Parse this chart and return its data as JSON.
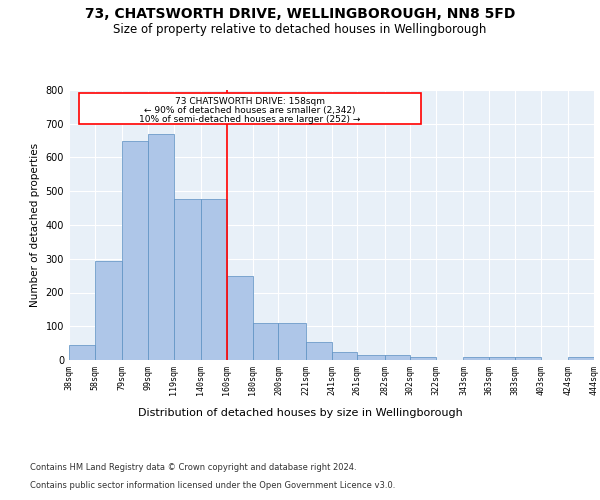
{
  "title1": "73, CHATSWORTH DRIVE, WELLINGBOROUGH, NN8 5FD",
  "title2": "Size of property relative to detached houses in Wellingborough",
  "xlabel": "Distribution of detached houses by size in Wellingborough",
  "ylabel": "Number of detached properties",
  "footer1": "Contains HM Land Registry data © Crown copyright and database right 2024.",
  "footer2": "Contains public sector information licensed under the Open Government Licence v3.0.",
  "annotation_line1": "73 CHATSWORTH DRIVE: 158sqm",
  "annotation_line2": "← 90% of detached houses are smaller (2,342)",
  "annotation_line3": "10% of semi-detached houses are larger (252) →",
  "bar_left_edges": [
    38,
    58,
    79,
    99,
    119,
    140,
    160,
    180,
    200,
    221,
    241,
    261,
    282,
    302,
    322,
    343,
    363,
    383,
    403,
    424
  ],
  "bar_heights": [
    45,
    293,
    650,
    670,
    478,
    478,
    250,
    110,
    110,
    52,
    25,
    14,
    14,
    8,
    0,
    8,
    8,
    8,
    0,
    8
  ],
  "bar_widths": [
    20,
    21,
    20,
    20,
    21,
    20,
    20,
    20,
    21,
    20,
    20,
    21,
    20,
    20,
    21,
    20,
    20,
    20,
    21,
    20
  ],
  "bar_color": "#aec6e8",
  "bar_edge_color": "#5a8fc2",
  "red_line_x": 160,
  "ylim": [
    0,
    800
  ],
  "xlim": [
    38,
    444
  ],
  "tick_labels": [
    "38sqm",
    "58sqm",
    "79sqm",
    "99sqm",
    "119sqm",
    "140sqm",
    "160sqm",
    "180sqm",
    "200sqm",
    "221sqm",
    "241sqm",
    "261sqm",
    "282sqm",
    "302sqm",
    "322sqm",
    "343sqm",
    "363sqm",
    "383sqm",
    "403sqm",
    "424sqm",
    "444sqm"
  ],
  "yticks": [
    0,
    100,
    200,
    300,
    400,
    500,
    600,
    700,
    800
  ],
  "bg_color": "#e8f0f8",
  "fig_bg_color": "#ffffff",
  "title1_fontsize": 10,
  "title2_fontsize": 8.5,
  "xlabel_fontsize": 8,
  "ylabel_fontsize": 7.5,
  "footer_fontsize": 6,
  "tick_fontsize": 6,
  "ytick_fontsize": 7
}
